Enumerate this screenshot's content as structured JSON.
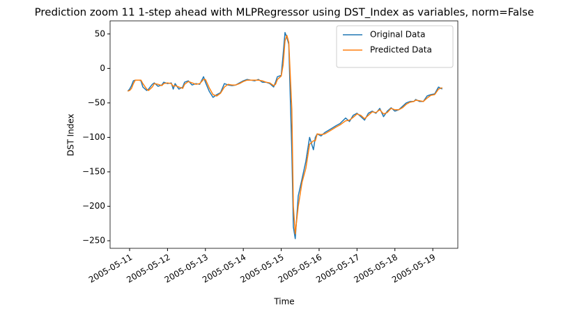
{
  "chart_data": {
    "type": "line",
    "title": "Prediction zoom 11 1-step ahead with MLPRegressor using DST_Index as variables, norm=False",
    "xlabel": "Time",
    "ylabel": "DST Index",
    "x": [
      10.95,
      11.0,
      11.05,
      11.1,
      11.15,
      11.25,
      11.3,
      11.35,
      11.45,
      11.5,
      11.6,
      11.65,
      11.75,
      11.85,
      11.9,
      12.0,
      12.1,
      12.15,
      12.2,
      12.3,
      12.4,
      12.45,
      12.55,
      12.65,
      12.75,
      12.85,
      12.95,
      13.0,
      13.1,
      13.2,
      13.3,
      13.4,
      13.5,
      13.6,
      13.7,
      13.8,
      13.9,
      14.0,
      14.1,
      14.2,
      14.3,
      14.4,
      14.5,
      14.6,
      14.7,
      14.8,
      14.85,
      14.9,
      15.0,
      15.05,
      15.1,
      15.15,
      15.2,
      15.28,
      15.32,
      15.37,
      15.45,
      15.55,
      15.65,
      15.75,
      15.85,
      15.9,
      15.95,
      16.05,
      16.15,
      16.3,
      16.45,
      16.55,
      16.7,
      16.8,
      16.9,
      17.0,
      17.1,
      17.2,
      17.3,
      17.4,
      17.5,
      17.6,
      17.7,
      17.8,
      17.9,
      18.0,
      18.1,
      18.2,
      18.3,
      18.4,
      18.5,
      18.55,
      18.65,
      18.75,
      18.85,
      18.95,
      19.05,
      19.15,
      19.25
    ],
    "series": [
      {
        "name": "Original Data",
        "color": "#1f77b4",
        "values": [
          -33,
          -30,
          -25,
          -18,
          -17,
          -17,
          -18,
          -27,
          -32,
          -30,
          -23,
          -21,
          -26,
          -24,
          -20,
          -22,
          -21,
          -30,
          -22,
          -30,
          -27,
          -20,
          -18,
          -24,
          -22,
          -23,
          -12,
          -20,
          -33,
          -42,
          -38,
          -35,
          -22,
          -24,
          -25,
          -24,
          -21,
          -18,
          -16,
          -17,
          -18,
          -16,
          -20,
          -20,
          -22,
          -27,
          -20,
          -12,
          -10,
          20,
          52,
          45,
          35,
          -120,
          -230,
          -247,
          -185,
          -160,
          -135,
          -100,
          -118,
          -100,
          -95,
          -98,
          -93,
          -88,
          -83,
          -80,
          -72,
          -77,
          -68,
          -65,
          -70,
          -75,
          -65,
          -62,
          -65,
          -58,
          -70,
          -62,
          -57,
          -62,
          -60,
          -55,
          -50,
          -48,
          -48,
          -45,
          -48,
          -48,
          -40,
          -38,
          -37,
          -27,
          -30
        ]
      },
      {
        "name": "Predicted Data",
        "color": "#ff7f0e",
        "values": [
          -33,
          -32,
          -29,
          -22,
          -17,
          -17,
          -17,
          -22,
          -30,
          -32,
          -27,
          -22,
          -23,
          -25,
          -22,
          -21,
          -22,
          -26,
          -25,
          -27,
          -29,
          -23,
          -19,
          -21,
          -23,
          -22,
          -16,
          -16,
          -28,
          -38,
          -40,
          -36,
          -27,
          -23,
          -24,
          -24,
          -22,
          -19,
          -17,
          -17,
          -17,
          -17,
          -18,
          -20,
          -21,
          -25,
          -23,
          -16,
          -11,
          5,
          40,
          48,
          38,
          -60,
          -200,
          -240,
          -200,
          -165,
          -145,
          -110,
          -105,
          -105,
          -95,
          -96,
          -95,
          -90,
          -85,
          -82,
          -76,
          -75,
          -71,
          -66,
          -68,
          -73,
          -68,
          -63,
          -64,
          -60,
          -66,
          -64,
          -58,
          -60,
          -60,
          -57,
          -52,
          -49,
          -48,
          -46,
          -47,
          -48,
          -43,
          -39,
          -38,
          -30,
          -28
        ]
      }
    ],
    "xlim": [
      10.485,
      19.66
    ],
    "ylim": [
      -261,
      69
    ],
    "xticks": [
      {
        "value": 11,
        "label": "2005-05-11"
      },
      {
        "value": 12,
        "label": "2005-05-12"
      },
      {
        "value": 13,
        "label": "2005-05-13"
      },
      {
        "value": 14,
        "label": "2005-05-14"
      },
      {
        "value": 15,
        "label": "2005-05-15"
      },
      {
        "value": 16,
        "label": "2005-05-16"
      },
      {
        "value": 17,
        "label": "2005-05-17"
      },
      {
        "value": 18,
        "label": "2005-05-18"
      },
      {
        "value": 19,
        "label": "2005-05-19"
      }
    ],
    "yticks": [
      {
        "value": -250,
        "label": "−250"
      },
      {
        "value": -200,
        "label": "−200"
      },
      {
        "value": -150,
        "label": "−150"
      },
      {
        "value": -100,
        "label": "−100"
      },
      {
        "value": -50,
        "label": "−50"
      },
      0,
      50
    ],
    "legend": "upper right"
  }
}
